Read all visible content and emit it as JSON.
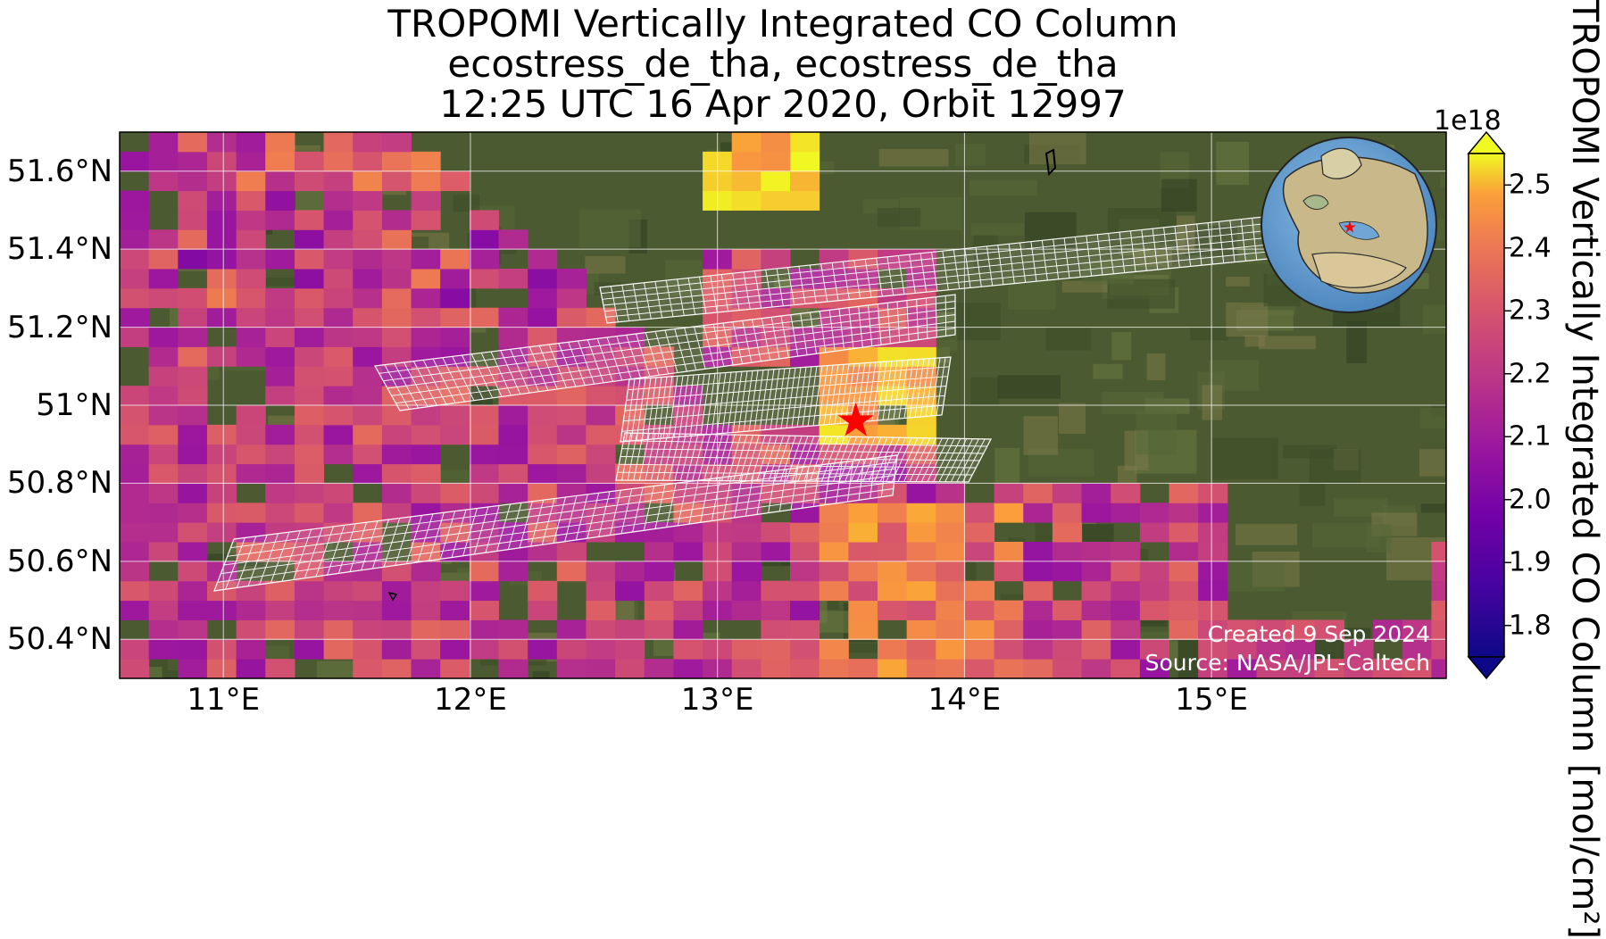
{
  "title": {
    "line1": "TROPOMI Vertically Integrated CO Column",
    "line2": "ecostress_de_tha, ecostress_de_tha",
    "line3": "12:25 UTC 16 Apr 2020, Orbit 12997"
  },
  "map": {
    "lon_range": [
      10.58,
      15.95
    ],
    "lat_range": [
      50.3,
      51.7
    ],
    "lat_ticks": [
      {
        "value": 51.6,
        "label": "51.6°N"
      },
      {
        "value": 51.4,
        "label": "51.4°N"
      },
      {
        "value": 51.2,
        "label": "51.2°N"
      },
      {
        "value": 51.0,
        "label": "51°N"
      },
      {
        "value": 50.8,
        "label": "50.8°N"
      },
      {
        "value": 50.6,
        "label": "50.6°N"
      },
      {
        "value": 50.4,
        "label": "50.4°N"
      }
    ],
    "lon_ticks": [
      {
        "value": 11,
        "label": "11°E"
      },
      {
        "value": 12,
        "label": "12°E"
      },
      {
        "value": 13,
        "label": "13°E"
      },
      {
        "value": 14,
        "label": "14°E"
      },
      {
        "value": 15,
        "label": "15°E"
      }
    ],
    "site_marker": {
      "lon": 13.56,
      "lat": 50.96,
      "color": "#ff0000"
    },
    "basemap_color": "#4b5a30",
    "grid_color": "#ffffff"
  },
  "colorbar": {
    "exponent_label": "1e18",
    "label": "TROPOMI Vertically Integrated CO Column [mol/cm²]",
    "range": [
      1.75,
      2.55
    ],
    "colormap": "plasma",
    "ticks": [
      {
        "value": 2.5,
        "label": "2.5"
      },
      {
        "value": 2.4,
        "label": "2.4"
      },
      {
        "value": 2.3,
        "label": "2.3"
      },
      {
        "value": 2.2,
        "label": "2.2"
      },
      {
        "value": 2.1,
        "label": "2.1"
      },
      {
        "value": 2.0,
        "label": "2.0"
      },
      {
        "value": 1.9,
        "label": "1.9"
      },
      {
        "value": 1.8,
        "label": "1.8"
      }
    ]
  },
  "credits": {
    "created": "Created 9 Sep 2024",
    "source": "Source: NASA/JPL-Caltech"
  },
  "inset_globe": {
    "label": "globe-inset",
    "marker_color": "#ff0000",
    "ocean_color": "#6fa6d6"
  }
}
